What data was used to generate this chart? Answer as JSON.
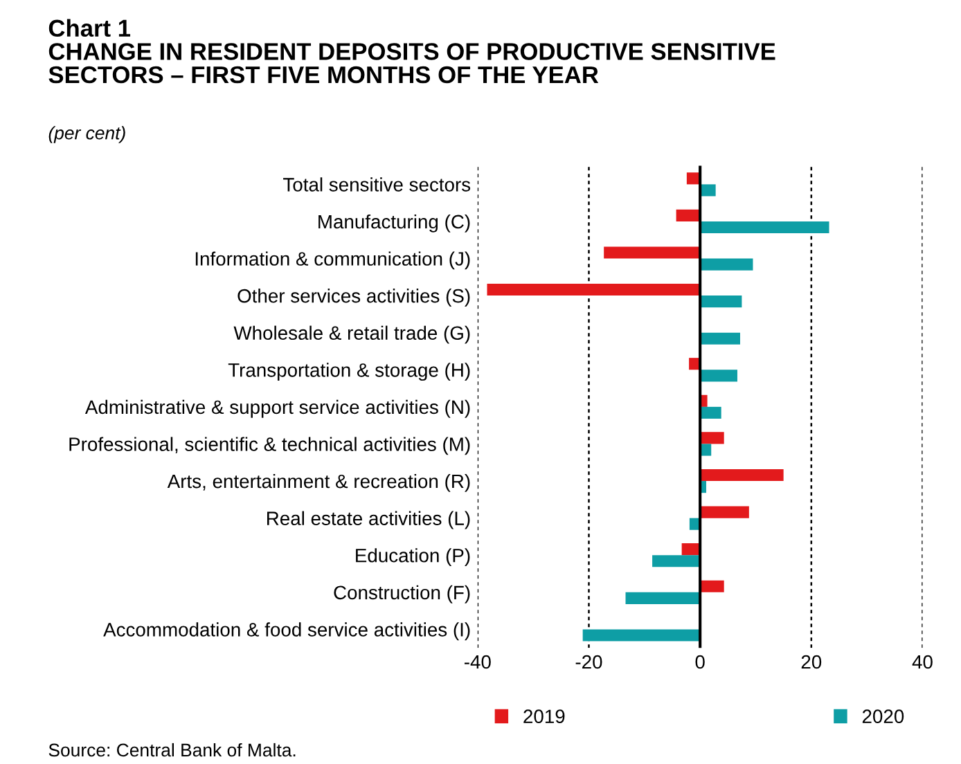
{
  "chart_data": {
    "type": "bar",
    "orientation": "horizontal",
    "title": "Chart 1\nCHANGE IN RESIDENT DEPOSITS OF PRODUCTIVE SENSITIVE\nSECTORS – FIRST FIVE MONTHS OF THE YEAR",
    "subtitle": "(per cent)",
    "categories": [
      "Total sensitive sectors",
      "Manufacturing (C)",
      "Information & communication (J)",
      "Other services activities (S)",
      "Wholesale & retail trade (G)",
      "Transportation & storage (H)",
      "Administrative & support service activities (N)",
      "Professional, scientific & technical activities (M)",
      "Arts, entertainment & recreation (R)",
      "Real estate activities (L)",
      "Education (P)",
      "Construction (F)",
      "Accommodation & food service activities (I)"
    ],
    "series": [
      {
        "name": "2019",
        "color": "#e31a1c",
        "values": [
          -2.4,
          -4.3,
          -17.3,
          -38.3,
          null,
          -2.0,
          1.3,
          4.3,
          15.0,
          8.8,
          -3.3,
          4.3,
          null
        ]
      },
      {
        "name": "2020",
        "color": "#0e9ea5",
        "values": [
          2.8,
          23.2,
          9.5,
          7.5,
          7.2,
          6.7,
          3.8,
          2.0,
          1.1,
          -1.9,
          -8.6,
          -13.4,
          -21.1
        ]
      }
    ],
    "xlim": [
      -40,
      40
    ],
    "xticks": [
      -40,
      -20,
      0,
      20,
      40
    ],
    "grid": "x",
    "legend": "bottom",
    "annotations": [
      "Source: Central Bank of Malta."
    ]
  }
}
